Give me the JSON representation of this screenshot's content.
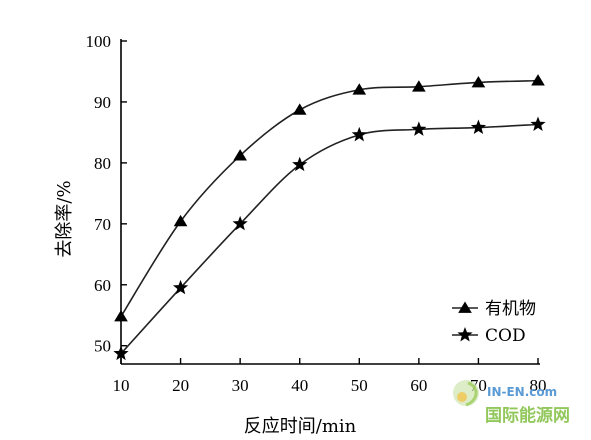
{
  "chart_data": {
    "type": "line",
    "xlabel": "反应时间/min",
    "ylabel": "去除率/%",
    "xlim": [
      10,
      80
    ],
    "ylim": [
      47,
      100
    ],
    "x_ticks": [
      10,
      20,
      30,
      40,
      50,
      60,
      70,
      80
    ],
    "y_ticks": [
      50,
      60,
      70,
      80,
      90,
      100
    ],
    "grid": false,
    "legend_position": "bottom-right",
    "x": [
      10,
      20,
      30,
      40,
      50,
      60,
      70,
      80
    ],
    "series": [
      {
        "name": "有机物",
        "marker": "triangle",
        "values": [
          54.8,
          70.4,
          81.2,
          88.7,
          92.0,
          92.5,
          93.2,
          93.5
        ]
      },
      {
        "name": "COD",
        "marker": "star",
        "values": [
          48.7,
          59.5,
          70.0,
          79.7,
          84.6,
          85.5,
          85.8,
          86.3
        ]
      }
    ]
  },
  "watermark": {
    "logo_text": "IN-EN.com",
    "brand_text": "国际能源网"
  },
  "colors": {
    "line": "#222222",
    "axis": "#000000",
    "watermark_blue": "#5a9bd5",
    "watermark_green": "#7fbf3f"
  }
}
